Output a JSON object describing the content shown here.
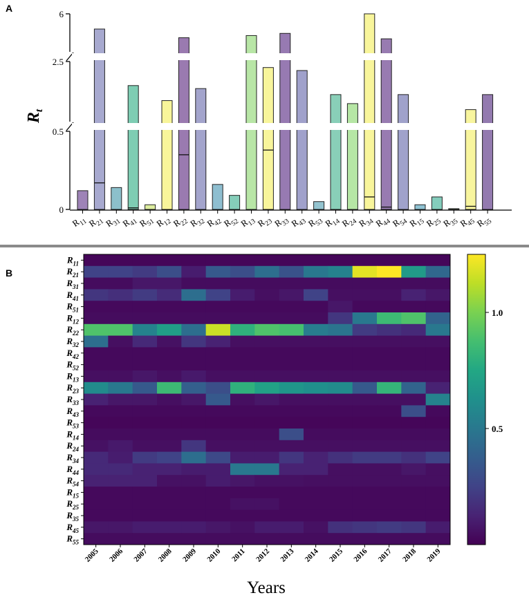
{
  "chart_data": [
    {
      "type": "bar",
      "panel": "A",
      "ylabel": "R",
      "ylabel_sub": "t",
      "y_ticks": [
        "0",
        "0.5",
        "2.5",
        "6"
      ],
      "axis_break": "broken y-axis: segments 0–0.5, 0.5–2.5, 2.5–6",
      "categories": [
        {
          "b": "R",
          "s": "11"
        },
        {
          "b": "R",
          "s": "21"
        },
        {
          "b": "R",
          "s": "31"
        },
        {
          "b": "R",
          "s": "41"
        },
        {
          "b": "R",
          "s": "51"
        },
        {
          "b": "R",
          "s": "12"
        },
        {
          "b": "R",
          "s": "22"
        },
        {
          "b": "R",
          "s": "32"
        },
        {
          "b": "R",
          "s": "42"
        },
        {
          "b": "R",
          "s": "52"
        },
        {
          "b": "R",
          "s": "13"
        },
        {
          "b": "R",
          "s": "23"
        },
        {
          "b": "R",
          "s": "33"
        },
        {
          "b": "R",
          "s": "43"
        },
        {
          "b": "R",
          "s": "53"
        },
        {
          "b": "R",
          "s": "14"
        },
        {
          "b": "R",
          "s": "24"
        },
        {
          "b": "R",
          "s": "34"
        },
        {
          "b": "R",
          "s": "44"
        },
        {
          "b": "R",
          "s": "54"
        },
        {
          "b": "R",
          "s": "15"
        },
        {
          "b": "R",
          "s": "25"
        },
        {
          "b": "R",
          "s": "35"
        },
        {
          "b": "R",
          "s": "45"
        },
        {
          "b": "R",
          "s": "55"
        }
      ],
      "values": [
        0.12,
        4.6,
        0.14,
        1.7,
        0.03,
        1.2,
        3.8,
        1.6,
        0.16,
        0.09,
        4.0,
        2.3,
        4.2,
        2.2,
        0.05,
        1.4,
        1.1,
        6.0,
        3.7,
        1.4,
        0.03,
        0.08,
        0.005,
        0.9,
        1.4
      ],
      "means": [
        null,
        0.17,
        null,
        0.01,
        null,
        null,
        0.35,
        null,
        null,
        null,
        null,
        0.38,
        null,
        null,
        null,
        null,
        null,
        0.08,
        0.015,
        null,
        null,
        null,
        null,
        0.02,
        null
      ],
      "colors": [
        "#9e83b7",
        "#a7a9cf",
        "#8cc0cb",
        "#7ecdb3",
        "#dded9f",
        "#f8f59a",
        "#9a7ab0",
        "#a3a4cc",
        "#8ebed0",
        "#85cdb9",
        "#b8e6a6",
        "#f8f59b",
        "#977ab2",
        "#a0a1cb",
        "#93c3cf",
        "#89cfb8",
        "#b6e6a5",
        "#f8f59b",
        "#987bb1",
        "#a0a2cb",
        "#8fc2d2",
        "#84cdbc",
        "#bde6a6",
        "#f8f59e",
        "#937aaf"
      ]
    },
    {
      "type": "heatmap",
      "panel": "B",
      "xlabel": "Years",
      "x": [
        "2005",
        "2006",
        "2007",
        "2008",
        "2009",
        "2010",
        "2011",
        "2012",
        "2013",
        "2014",
        "2015",
        "2016",
        "2017",
        "2018",
        "2019"
      ],
      "rows": [
        {
          "b": "R",
          "s": "11"
        },
        {
          "b": "R",
          "s": "21"
        },
        {
          "b": "R",
          "s": "31"
        },
        {
          "b": "R",
          "s": "41"
        },
        {
          "b": "R",
          "s": "51"
        },
        {
          "b": "R",
          "s": "12"
        },
        {
          "b": "R",
          "s": "22"
        },
        {
          "b": "R",
          "s": "32"
        },
        {
          "b": "R",
          "s": "42"
        },
        {
          "b": "R",
          "s": "52"
        },
        {
          "b": "R",
          "s": "13"
        },
        {
          "b": "R",
          "s": "23"
        },
        {
          "b": "R",
          "s": "33"
        },
        {
          "b": "R",
          "s": "43"
        },
        {
          "b": "R",
          "s": "53"
        },
        {
          "b": "R",
          "s": "14"
        },
        {
          "b": "R",
          "s": "24"
        },
        {
          "b": "R",
          "s": "34"
        },
        {
          "b": "R",
          "s": "44"
        },
        {
          "b": "R",
          "s": "54"
        },
        {
          "b": "R",
          "s": "15"
        },
        {
          "b": "R",
          "s": "25"
        },
        {
          "b": "R",
          "s": "35"
        },
        {
          "b": "R",
          "s": "45"
        },
        {
          "b": "R",
          "s": "55"
        }
      ],
      "values": [
        [
          0.02,
          0.02,
          0.02,
          0.02,
          0.02,
          0.02,
          0.02,
          0.02,
          0.02,
          0.02,
          0.02,
          0.02,
          0.02,
          0.02,
          0.02
        ],
        [
          0.25,
          0.25,
          0.22,
          0.3,
          0.1,
          0.35,
          0.3,
          0.45,
          0.32,
          0.5,
          0.55,
          1.2,
          1.25,
          0.68,
          0.42
        ],
        [
          0.04,
          0.04,
          0.08,
          0.08,
          0.04,
          0.04,
          0.04,
          0.04,
          0.04,
          0.04,
          0.04,
          0.04,
          0.04,
          0.04,
          0.04
        ],
        [
          0.2,
          0.17,
          0.22,
          0.16,
          0.45,
          0.25,
          0.1,
          0.05,
          0.08,
          0.25,
          0.05,
          0.05,
          0.05,
          0.12,
          0.08
        ],
        [
          0.03,
          0.03,
          0.03,
          0.03,
          0.03,
          0.03,
          0.03,
          0.03,
          0.03,
          0.03,
          0.08,
          0.03,
          0.03,
          0.03,
          0.03
        ],
        [
          0.04,
          0.04,
          0.04,
          0.04,
          0.04,
          0.04,
          0.04,
          0.04,
          0.04,
          0.04,
          0.2,
          0.5,
          0.85,
          0.9,
          0.4
        ],
        [
          0.9,
          0.9,
          0.55,
          0.7,
          0.45,
          1.15,
          0.8,
          0.9,
          0.88,
          0.52,
          0.48,
          0.22,
          0.18,
          0.15,
          0.5
        ],
        [
          0.45,
          0.05,
          0.15,
          0.06,
          0.2,
          0.12,
          0.05,
          0.05,
          0.05,
          0.05,
          0.05,
          0.05,
          0.05,
          0.05,
          0.05
        ],
        [
          0.03,
          0.03,
          0.03,
          0.03,
          0.03,
          0.03,
          0.03,
          0.03,
          0.03,
          0.03,
          0.03,
          0.03,
          0.03,
          0.03,
          0.03
        ],
        [
          0.03,
          0.03,
          0.03,
          0.03,
          0.03,
          0.03,
          0.03,
          0.03,
          0.03,
          0.03,
          0.03,
          0.03,
          0.03,
          0.03,
          0.03
        ],
        [
          0.05,
          0.05,
          0.08,
          0.05,
          0.09,
          0.05,
          0.05,
          0.05,
          0.05,
          0.05,
          0.05,
          0.05,
          0.05,
          0.05,
          0.05
        ],
        [
          0.6,
          0.5,
          0.35,
          0.85,
          0.38,
          0.3,
          0.8,
          0.72,
          0.65,
          0.62,
          0.6,
          0.35,
          0.82,
          0.4,
          0.12
        ],
        [
          0.12,
          0.08,
          0.08,
          0.05,
          0.08,
          0.35,
          0.05,
          0.08,
          0.05,
          0.05,
          0.05,
          0.05,
          0.05,
          0.05,
          0.55
        ],
        [
          0.03,
          0.03,
          0.03,
          0.03,
          0.03,
          0.03,
          0.03,
          0.03,
          0.03,
          0.03,
          0.03,
          0.03,
          0.03,
          0.3,
          0.03
        ],
        [
          0.02,
          0.02,
          0.02,
          0.02,
          0.02,
          0.02,
          0.02,
          0.02,
          0.02,
          0.02,
          0.02,
          0.02,
          0.02,
          0.02,
          0.02
        ],
        [
          0.04,
          0.04,
          0.04,
          0.04,
          0.04,
          0.04,
          0.04,
          0.04,
          0.3,
          0.04,
          0.04,
          0.04,
          0.04,
          0.04,
          0.04
        ],
        [
          0.06,
          0.09,
          0.05,
          0.05,
          0.2,
          0.05,
          0.05,
          0.05,
          0.05,
          0.05,
          0.05,
          0.05,
          0.05,
          0.05,
          0.05
        ],
        [
          0.15,
          0.1,
          0.22,
          0.25,
          0.45,
          0.28,
          0.1,
          0.1,
          0.2,
          0.12,
          0.18,
          0.22,
          0.22,
          0.18,
          0.25
        ],
        [
          0.15,
          0.15,
          0.12,
          0.12,
          0.1,
          0.1,
          0.5,
          0.5,
          0.12,
          0.12,
          0.05,
          0.05,
          0.05,
          0.08,
          0.05
        ],
        [
          0.12,
          0.12,
          0.12,
          0.06,
          0.06,
          0.1,
          0.08,
          0.06,
          0.06,
          0.05,
          0.05,
          0.05,
          0.05,
          0.05,
          0.05
        ],
        [
          0.03,
          0.03,
          0.03,
          0.03,
          0.03,
          0.03,
          0.03,
          0.03,
          0.03,
          0.03,
          0.03,
          0.03,
          0.03,
          0.03,
          0.03
        ],
        [
          0.03,
          0.03,
          0.03,
          0.03,
          0.03,
          0.03,
          0.06,
          0.06,
          0.03,
          0.03,
          0.03,
          0.03,
          0.03,
          0.03,
          0.03
        ],
        [
          0.03,
          0.03,
          0.03,
          0.03,
          0.03,
          0.03,
          0.03,
          0.03,
          0.03,
          0.03,
          0.03,
          0.03,
          0.03,
          0.03,
          0.03
        ],
        [
          0.08,
          0.08,
          0.1,
          0.1,
          0.1,
          0.08,
          0.06,
          0.1,
          0.1,
          0.06,
          0.18,
          0.2,
          0.22,
          0.2,
          0.1
        ],
        [
          0.04,
          0.04,
          0.04,
          0.04,
          0.04,
          0.04,
          0.04,
          0.04,
          0.04,
          0.04,
          0.04,
          0.04,
          0.04,
          0.04,
          0.04
        ]
      ],
      "colorbar_ticks": [
        "0.5",
        "1.0"
      ],
      "colorbar_range": [
        0,
        1.25
      ],
      "colormap": "viridis"
    }
  ],
  "labels": {
    "panel_a": "A",
    "panel_b": "B"
  }
}
